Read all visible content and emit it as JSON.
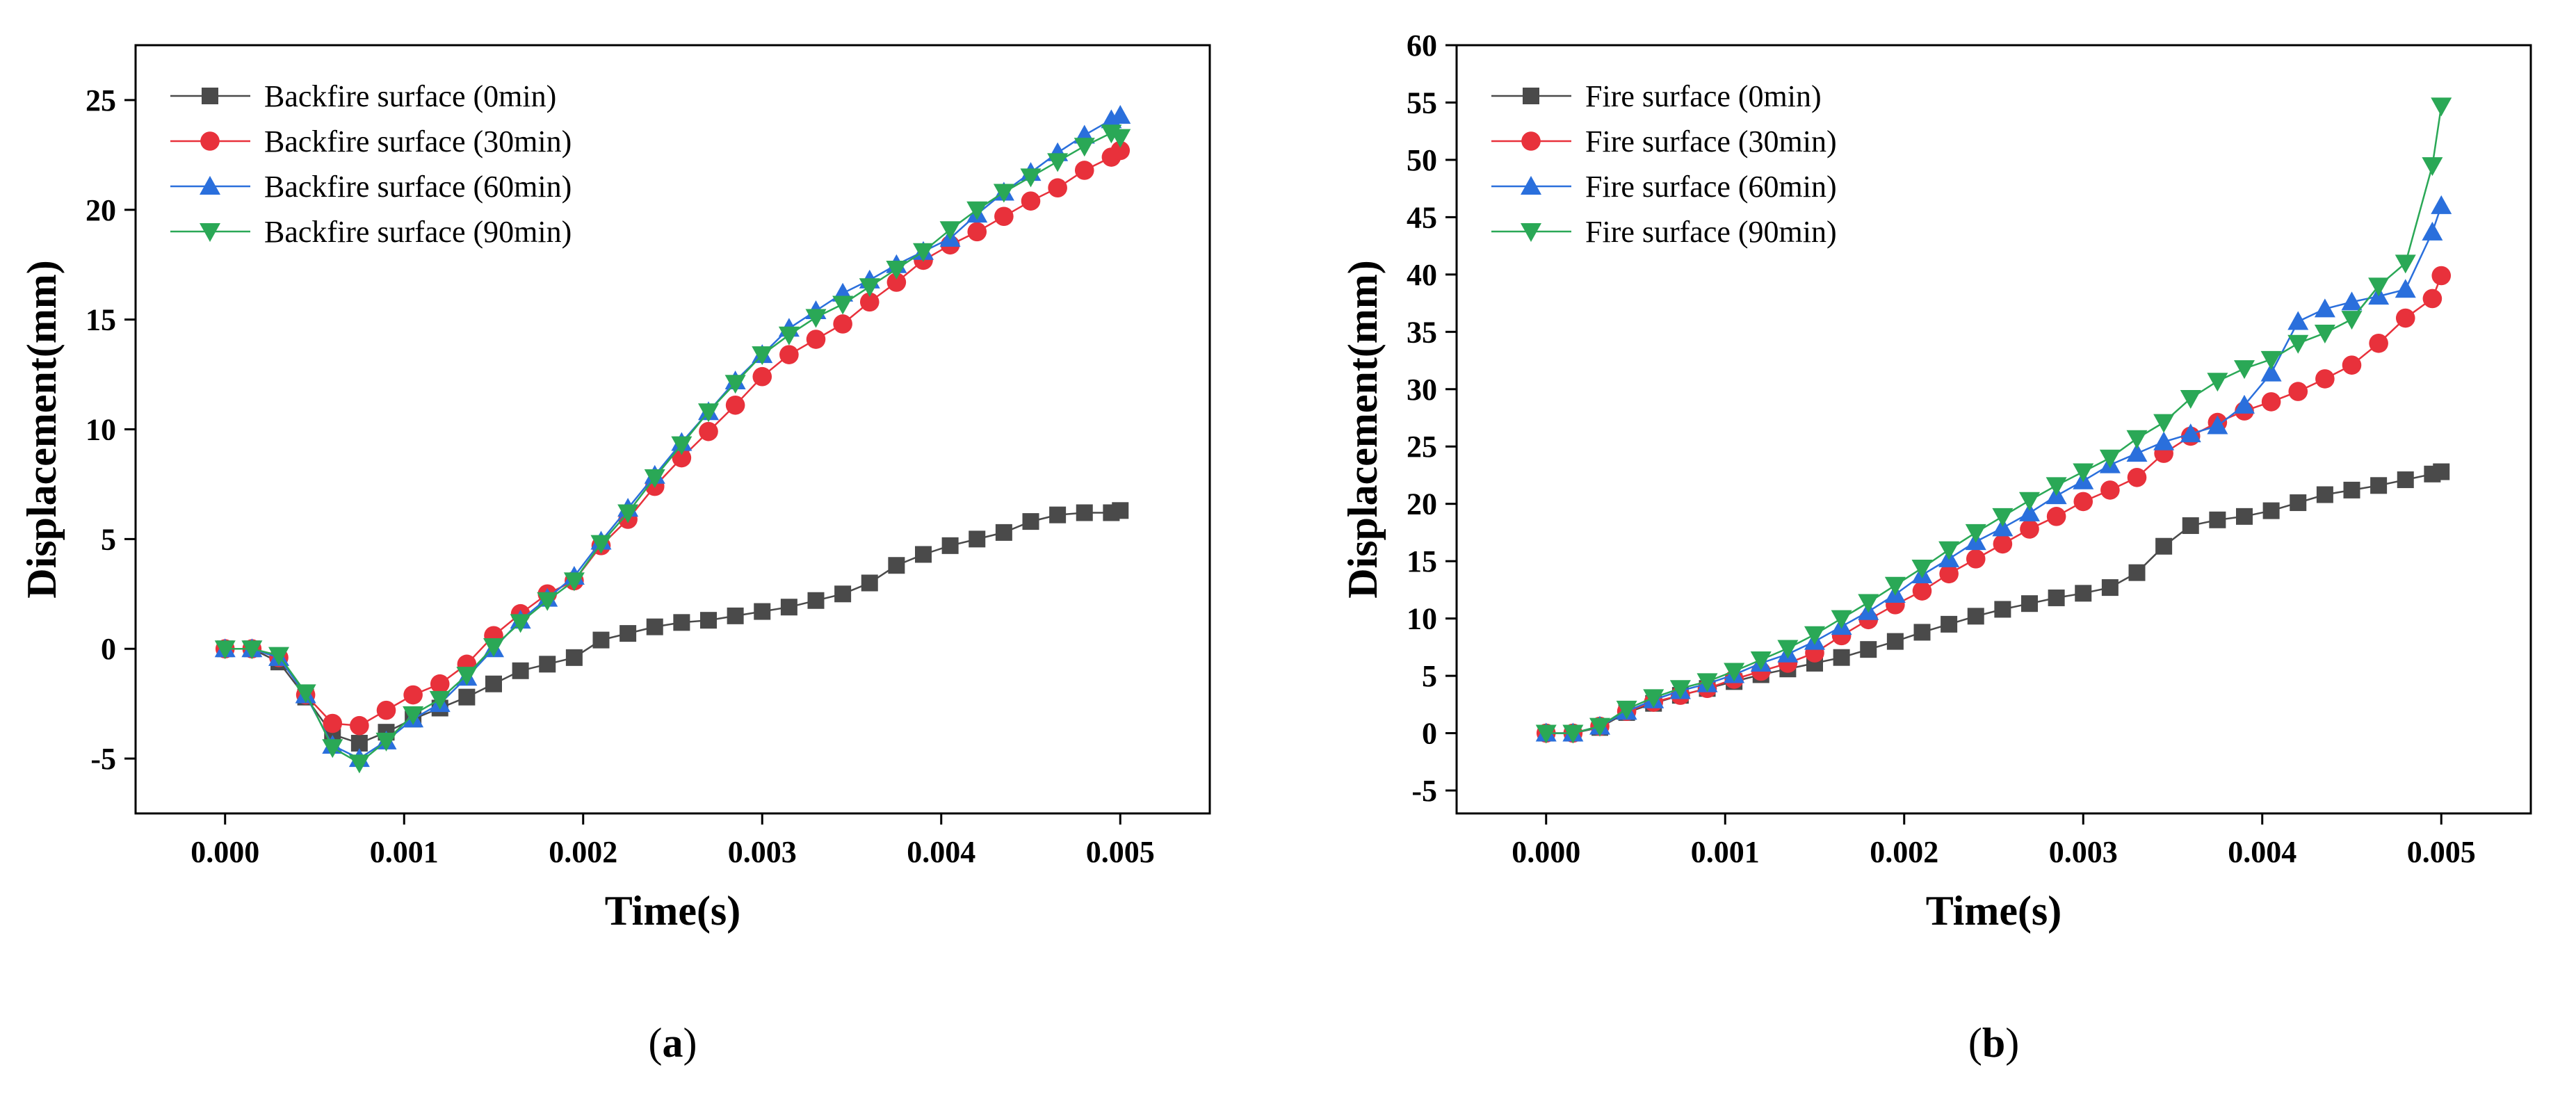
{
  "chart_data": [
    {
      "type": "line",
      "panel_label": "a",
      "xlabel": "Time(s)",
      "ylabel": "Displacement(mm)",
      "xlim": [
        -0.0005,
        0.0055
      ],
      "ylim": [
        -7.5,
        27.5
      ],
      "xticks": [
        0.0,
        0.001,
        0.002,
        0.003,
        0.004,
        0.005
      ],
      "xtick_labels": [
        "0.000",
        "0.001",
        "0.002",
        "0.003",
        "0.004",
        "0.005"
      ],
      "yticks": [
        -5,
        0,
        5,
        10,
        15,
        20,
        25
      ],
      "ytick_labels": [
        "-5",
        "0",
        "5",
        "10",
        "15",
        "20",
        "25"
      ],
      "legend_position": "top-left",
      "x": [
        0.0,
        0.00015,
        0.0003,
        0.00045,
        0.0006,
        0.00075,
        0.0009,
        0.00105,
        0.0012,
        0.00135,
        0.0015,
        0.00165,
        0.0018,
        0.00195,
        0.0021,
        0.00225,
        0.0024,
        0.00255,
        0.0027,
        0.00285,
        0.003,
        0.00315,
        0.0033,
        0.00345,
        0.0036,
        0.00375,
        0.0039,
        0.00405,
        0.0042,
        0.00435,
        0.0045,
        0.00465,
        0.0048,
        0.00495,
        0.005
      ],
      "series": [
        {
          "name": "Backfire surface (0min)",
          "color": "#4a4a4a",
          "marker": "square",
          "values": [
            0,
            0,
            -0.6,
            -2.2,
            -3.9,
            -4.3,
            -3.8,
            -3.2,
            -2.7,
            -2.2,
            -1.6,
            -1.0,
            -0.7,
            -0.4,
            0.4,
            0.7,
            1.0,
            1.2,
            1.3,
            1.5,
            1.7,
            1.9,
            2.2,
            2.5,
            3.0,
            3.8,
            4.3,
            4.7,
            5.0,
            5.3,
            5.8,
            6.1,
            6.2,
            6.2,
            6.3
          ]
        },
        {
          "name": "Backfire surface (30min)",
          "color": "#e8313b",
          "marker": "circle",
          "values": [
            0,
            0,
            -0.4,
            -2.1,
            -3.4,
            -3.5,
            -2.8,
            -2.1,
            -1.6,
            -0.7,
            0.6,
            1.6,
            2.5,
            3.1,
            4.7,
            5.9,
            7.4,
            8.7,
            9.9,
            11.1,
            12.4,
            13.4,
            14.1,
            14.8,
            15.8,
            16.7,
            17.7,
            18.4,
            19.0,
            19.7,
            20.4,
            21.0,
            21.8,
            22.4,
            22.7
          ]
        },
        {
          "name": "Backfire surface (60min)",
          "color": "#2a6fdc",
          "marker": "triangle-up",
          "values": [
            0,
            0,
            -0.4,
            -2.1,
            -4.4,
            -5.0,
            -4.2,
            -3.2,
            -2.5,
            -1.3,
            0.0,
            1.3,
            2.3,
            3.3,
            4.9,
            6.4,
            7.9,
            9.4,
            10.8,
            12.2,
            13.4,
            14.6,
            15.4,
            16.2,
            16.8,
            17.5,
            18.1,
            18.7,
            19.8,
            20.8,
            21.7,
            22.6,
            23.4,
            24.1,
            24.3
          ]
        },
        {
          "name": "Backfire surface (90min)",
          "color": "#2aa856",
          "marker": "triangle-down",
          "values": [
            0,
            0,
            -0.3,
            -2.0,
            -4.5,
            -5.2,
            -4.2,
            -3.0,
            -2.3,
            -1.2,
            0.1,
            1.2,
            2.2,
            3.1,
            4.8,
            6.2,
            7.8,
            9.3,
            10.8,
            12.1,
            13.4,
            14.3,
            15.1,
            15.7,
            16.5,
            17.3,
            18.1,
            19.1,
            20.0,
            20.8,
            21.5,
            22.2,
            22.9,
            23.5,
            23.3
          ]
        }
      ]
    },
    {
      "type": "line",
      "panel_label": "b",
      "xlabel": "Time(s)",
      "ylabel": "Displacement(mm)",
      "xlim": [
        -0.0005,
        0.0055
      ],
      "ylim": [
        -7,
        60
      ],
      "xticks": [
        0.0,
        0.001,
        0.002,
        0.003,
        0.004,
        0.005
      ],
      "xtick_labels": [
        "0.000",
        "0.001",
        "0.002",
        "0.003",
        "0.004",
        "0.005"
      ],
      "yticks": [
        -5,
        0,
        5,
        10,
        15,
        20,
        25,
        30,
        35,
        40,
        45,
        50,
        55,
        60
      ],
      "ytick_labels": [
        "-5",
        "0",
        "5",
        "10",
        "15",
        "20",
        "25",
        "30",
        "35",
        "40",
        "45",
        "50",
        "55",
        "60"
      ],
      "legend_position": "top-left",
      "x": [
        0.0,
        0.00015,
        0.0003,
        0.00045,
        0.0006,
        0.00075,
        0.0009,
        0.00105,
        0.0012,
        0.00135,
        0.0015,
        0.00165,
        0.0018,
        0.00195,
        0.0021,
        0.00225,
        0.0024,
        0.00255,
        0.0027,
        0.00285,
        0.003,
        0.00315,
        0.0033,
        0.00345,
        0.0036,
        0.00375,
        0.0039,
        0.00405,
        0.0042,
        0.00435,
        0.0045,
        0.00465,
        0.0048,
        0.00495,
        0.005
      ],
      "series": [
        {
          "name": "Fire surface (0min)",
          "color": "#4a4a4a",
          "marker": "square",
          "values": [
            0,
            0,
            0.5,
            1.8,
            2.6,
            3.3,
            3.9,
            4.5,
            5.1,
            5.6,
            6.1,
            6.6,
            7.3,
            8.0,
            8.8,
            9.5,
            10.2,
            10.8,
            11.3,
            11.8,
            12.2,
            12.7,
            14.0,
            16.3,
            18.1,
            18.6,
            18.9,
            19.4,
            20.1,
            20.8,
            21.2,
            21.6,
            22.1,
            22.6,
            22.8
          ]
        },
        {
          "name": "Fire surface (30min)",
          "color": "#e8313b",
          "marker": "circle",
          "values": [
            0,
            0,
            0.6,
            1.9,
            2.7,
            3.3,
            3.9,
            4.7,
            5.4,
            6.1,
            7.0,
            8.5,
            9.9,
            11.2,
            12.4,
            13.9,
            15.2,
            16.5,
            17.8,
            18.9,
            20.2,
            21.2,
            22.3,
            24.4,
            25.9,
            27.1,
            28.1,
            28.9,
            29.8,
            30.9,
            32.1,
            34.0,
            36.2,
            37.9,
            39.9
          ]
        },
        {
          "name": "Fire surface (60min)",
          "color": "#2a6fdc",
          "marker": "triangle-up",
          "values": [
            0,
            0,
            0.6,
            1.9,
            2.9,
            3.7,
            4.3,
            5.1,
            6.1,
            6.9,
            8.0,
            9.3,
            10.6,
            12.1,
            13.8,
            15.2,
            16.7,
            17.9,
            19.2,
            20.7,
            22.0,
            23.4,
            24.4,
            25.4,
            26.1,
            26.8,
            28.6,
            31.4,
            35.9,
            37.0,
            37.6,
            38.1,
            38.7,
            43.7,
            46.0
          ]
        },
        {
          "name": "Fire surface (90min)",
          "color": "#2aa856",
          "marker": "triangle-down",
          "values": [
            0,
            0,
            0.6,
            2.1,
            3.1,
            3.9,
            4.5,
            5.4,
            6.4,
            7.4,
            8.6,
            10.0,
            11.4,
            12.9,
            14.4,
            16.0,
            17.5,
            18.9,
            20.3,
            21.6,
            22.8,
            24.0,
            25.7,
            27.1,
            29.2,
            30.7,
            31.8,
            32.6,
            34.0,
            34.9,
            36.1,
            39.0,
            41.0,
            49.5,
            54.7
          ]
        }
      ]
    }
  ]
}
